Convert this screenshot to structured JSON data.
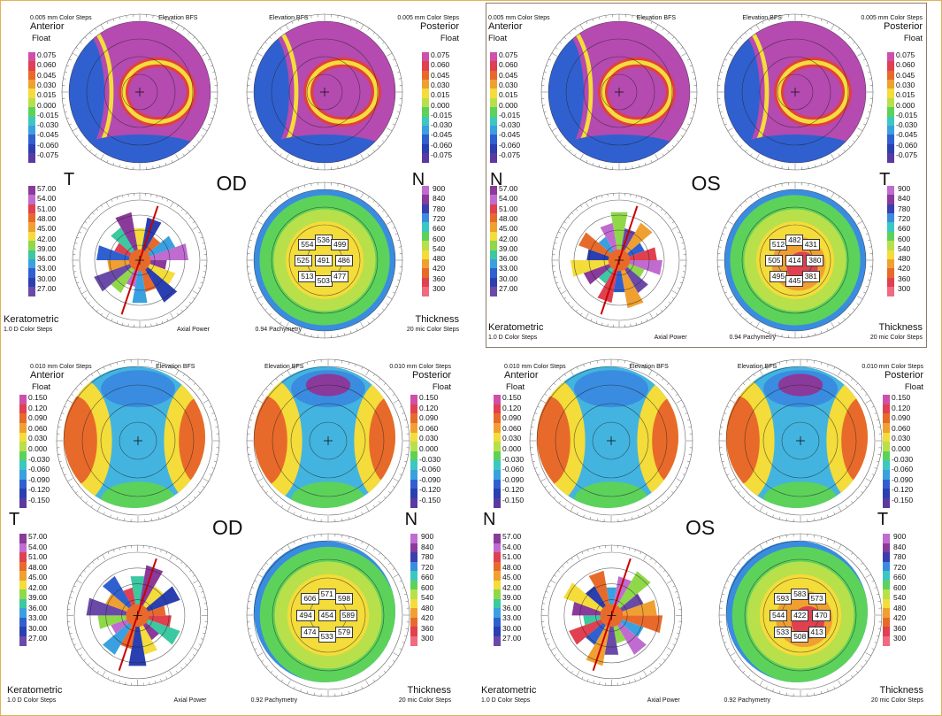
{
  "colors": {
    "frame": "#e2b25a"
  },
  "panels": [
    {
      "id": "tl",
      "steps_left": "0.005 mm Color Steps",
      "elev_left": "Elevation BFS",
      "elev_right": "Elevation BFS",
      "steps_right": "0.005 mm Color Steps",
      "anterior": "Anterior",
      "posterior": "Posterior",
      "float_left": "Float",
      "float_right": "Float",
      "eye": "OD",
      "side_left": "T",
      "side_right": "N",
      "keratometric": "Keratometric",
      "thickness": "Thickness",
      "kstep": "1.0 D Color Steps",
      "axial": "Axial Power",
      "pachy": "0.94 Pachymetry",
      "micsteps": "20 mic Color Steps",
      "elev_scale": [
        "0.075",
        "0.060",
        "0.045",
        "0.030",
        "0.015",
        "0.000",
        "-0.015",
        "-0.030",
        "-0.045",
        "-0.060",
        "-0.075"
      ],
      "k_scale": [
        "57.00",
        "54.00",
        "51.00",
        "48.00",
        "45.00",
        "42.00",
        "39.00",
        "36.00",
        "33.00",
        "30.00",
        "27.00"
      ],
      "thick_scale": [
        "900",
        "840",
        "780",
        "720",
        "660",
        "600",
        "540",
        "480",
        "420",
        "360",
        "300"
      ],
      "pachy_vals": [
        "554",
        "536",
        "499",
        "525",
        "491",
        "486",
        "513",
        "503",
        "477"
      ]
    },
    {
      "id": "tr",
      "steps_left": "0.005 mm Color Steps",
      "elev_left": "Elevation BFS",
      "elev_right": "Elevation BFS",
      "steps_right": "0.005 mm Color Steps",
      "anterior": "Anterior",
      "posterior": "Posterior",
      "float_left": "Float",
      "float_right": "Float",
      "eye": "OS",
      "side_left": "N",
      "side_right": "T",
      "keratometric": "Keratometric",
      "thickness": "Thickness",
      "kstep": "1.0 D Color Steps",
      "axial": "Axial Power",
      "pachy": "0.94 Pachymetry",
      "micsteps": "20 mic Color Steps",
      "elev_scale": [
        "0.075",
        "0.060",
        "0.045",
        "0.030",
        "0.015",
        "0.000",
        "-0.015",
        "-0.030",
        "-0.045",
        "-0.060",
        "-0.075"
      ],
      "k_scale": [
        "57.00",
        "54.00",
        "51.00",
        "48.00",
        "45.00",
        "42.00",
        "39.00",
        "36.00",
        "33.00",
        "30.00",
        "27.00"
      ],
      "thick_scale": [
        "900",
        "840",
        "780",
        "720",
        "660",
        "600",
        "540",
        "480",
        "420",
        "360",
        "300"
      ],
      "pachy_vals": [
        "512",
        "482",
        "431",
        "505",
        "414",
        "380",
        "495",
        "445",
        "381"
      ]
    },
    {
      "id": "bl",
      "steps_left": "0.010 mm Color Steps",
      "elev_left": "Elevation BFS",
      "elev_right": "Elevation BFS",
      "steps_right": "0.010 mm Color Steps",
      "anterior": "Anterior",
      "posterior": "Posterior",
      "float_left": "Float",
      "float_right": "Float",
      "eye": "OD",
      "side_left": "T",
      "side_right": "N",
      "keratometric": "Keratometric",
      "thickness": "Thickness",
      "kstep": "1.0 D Color Steps",
      "axial": "Axial Power",
      "pachy": "0.92 Pachymetry",
      "micsteps": "20 mic Color Steps",
      "elev_scale": [
        "0.150",
        "0.120",
        "0.090",
        "0.060",
        "0.030",
        "0.000",
        "-0.030",
        "-0.060",
        "-0.090",
        "-0.120",
        "-0.150"
      ],
      "k_scale": [
        "57.00",
        "54.00",
        "51.00",
        "48.00",
        "45.00",
        "42.00",
        "39.00",
        "36.00",
        "33.00",
        "30.00",
        "27.00"
      ],
      "thick_scale": [
        "900",
        "840",
        "780",
        "720",
        "660",
        "600",
        "540",
        "480",
        "420",
        "360",
        "300"
      ],
      "pachy_vals": [
        "606",
        "571",
        "598",
        "494",
        "454",
        "589",
        "474",
        "533",
        "579"
      ]
    },
    {
      "id": "br",
      "steps_left": "0.010 mm Color Steps",
      "elev_left": "Elevation BFS",
      "elev_right": "Elevation BFS",
      "steps_right": "0.010 mm Color Steps",
      "anterior": "Anterior",
      "posterior": "Posterior",
      "float_left": "Float",
      "float_right": "Float",
      "eye": "OS",
      "side_left": "N",
      "side_right": "T",
      "keratometric": "Keratometric",
      "thickness": "Thickness",
      "kstep": "1.0 D Color Steps",
      "axial": "Axial Power",
      "pachy": "0.92 Pachymetry",
      "micsteps": "20 mic Color Steps",
      "elev_scale": [
        "0.150",
        "0.120",
        "0.090",
        "0.060",
        "0.030",
        "0.000",
        "-0.030",
        "-0.060",
        "-0.090",
        "-0.120",
        "-0.150"
      ],
      "k_scale": [
        "57.00",
        "54.00",
        "51.00",
        "48.00",
        "45.00",
        "42.00",
        "39.00",
        "36.00",
        "33.00",
        "30.00",
        "27.00"
      ],
      "thick_scale": [
        "900",
        "840",
        "780",
        "720",
        "660",
        "600",
        "540",
        "480",
        "420",
        "360",
        "300"
      ],
      "pachy_vals": [
        "593",
        "583",
        "573",
        "544",
        "422",
        "470",
        "533",
        "508",
        "413"
      ]
    }
  ]
}
